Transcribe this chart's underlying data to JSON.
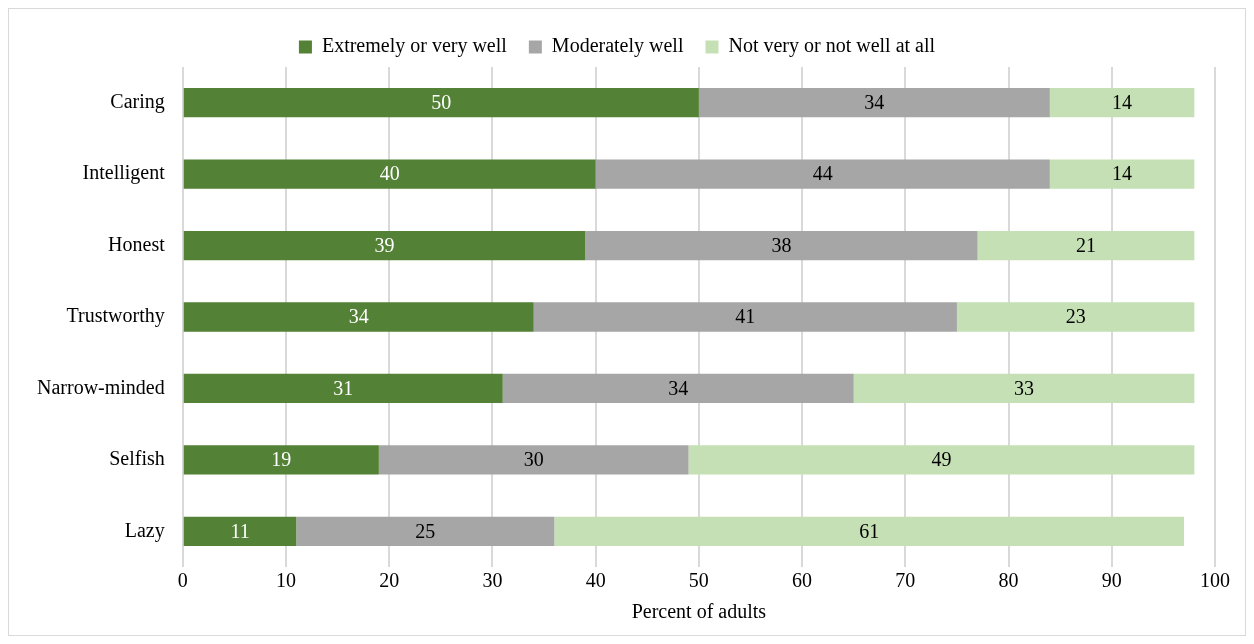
{
  "chart_data": {
    "type": "bar",
    "orientation": "horizontal",
    "stacked": true,
    "categories": [
      "Caring",
      "Intelligent",
      "Honest",
      "Trustworthy",
      "Narrow-minded",
      "Selfish",
      "Lazy"
    ],
    "series": [
      {
        "name": "Extremely or very well",
        "color": "#538135",
        "values": [
          50,
          40,
          39,
          34,
          31,
          19,
          11
        ]
      },
      {
        "name": "Moderately well",
        "color": "#a6a6a6",
        "values": [
          34,
          44,
          38,
          41,
          34,
          30,
          25
        ]
      },
      {
        "name": "Not very or not well at all",
        "color": "#c5e0b4",
        "values": [
          14,
          14,
          21,
          23,
          33,
          49,
          61
        ]
      }
    ],
    "xlabel": "Percent of adults",
    "xlim": [
      0,
      100
    ],
    "xticks": [
      0,
      10,
      20,
      30,
      40,
      50,
      60,
      70,
      80,
      90,
      100
    ],
    "grid": "x",
    "legend": "top",
    "data_labels": true
  }
}
